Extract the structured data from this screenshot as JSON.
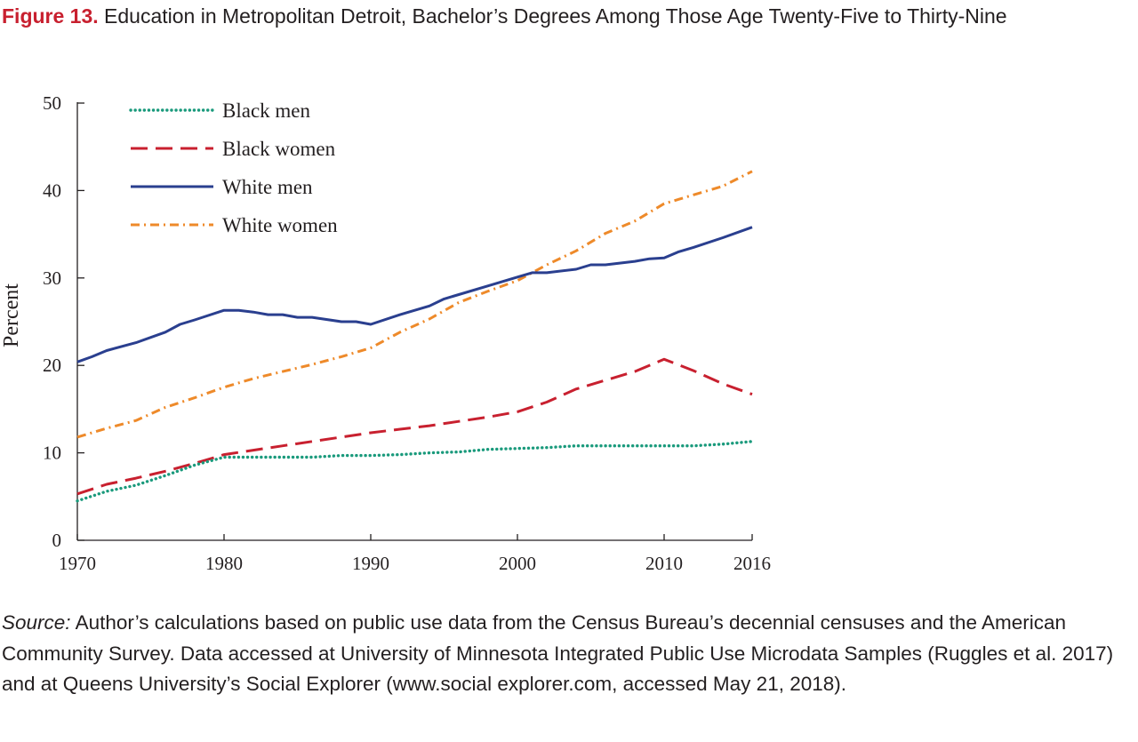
{
  "figure": {
    "label": "Figure 13.",
    "title": "Education in Metropolitan Detroit, Bachelor’s Degrees Among Those Age Twenty-Five to Thirty-Nine"
  },
  "source": {
    "label": "Source:",
    "text": "Author’s calculations based on public use data from the Census Bureau’s decennial censuses and the American Community Survey. Data accessed at University of Minnesota Integrated Public Use Microdata Samples (Ruggles et al. 2017) and at Queens University’s Social Explorer (www.social explorer.com, accessed May 21, 2018)."
  },
  "chart_data": {
    "type": "line",
    "xlabel": "",
    "ylabel": "Percent",
    "xlim": [
      1970,
      2016
    ],
    "ylim": [
      0,
      50
    ],
    "xticks": [
      1970,
      1980,
      1990,
      2000,
      2010,
      2016
    ],
    "yticks": [
      0,
      10,
      20,
      30,
      40,
      50
    ],
    "grid": false,
    "legend": "top-left",
    "series": [
      {
        "name": "Black men",
        "color": "#1a9a7c",
        "style": "dotted",
        "x": [
          1970,
          1972,
          1974,
          1976,
          1978,
          1980,
          1982,
          1984,
          1986,
          1988,
          1990,
          1992,
          1994,
          1996,
          1998,
          2000,
          2002,
          2004,
          2006,
          2008,
          2010,
          2012,
          2014,
          2016
        ],
        "y": [
          4.5,
          5.6,
          6.3,
          7.4,
          8.6,
          9.5,
          9.5,
          9.5,
          9.5,
          9.7,
          9.7,
          9.8,
          10.0,
          10.1,
          10.4,
          10.5,
          10.6,
          10.8,
          10.8,
          10.8,
          10.8,
          10.8,
          11.0,
          11.3
        ]
      },
      {
        "name": "Black women",
        "color": "#c8202f",
        "style": "dashed",
        "x": [
          1970,
          1972,
          1974,
          1976,
          1978,
          1980,
          1982,
          1984,
          1986,
          1988,
          1990,
          1992,
          1994,
          1996,
          1998,
          2000,
          2002,
          2004,
          2006,
          2008,
          2010,
          2012,
          2014,
          2016
        ],
        "y": [
          5.3,
          6.4,
          7.1,
          7.9,
          8.8,
          9.8,
          10.3,
          10.8,
          11.3,
          11.8,
          12.3,
          12.7,
          13.1,
          13.6,
          14.1,
          14.7,
          15.8,
          17.3,
          18.3,
          19.3,
          20.7,
          19.4,
          17.9,
          16.7
        ]
      },
      {
        "name": "White men",
        "color": "#2a3f8f",
        "style": "solid",
        "x": [
          1970,
          1971,
          1972,
          1974,
          1976,
          1977,
          1978,
          1980,
          1981,
          1982,
          1983,
          1984,
          1985,
          1986,
          1988,
          1989,
          1990,
          1992,
          1994,
          1995,
          1996,
          1998,
          2000,
          2001,
          2002,
          2004,
          2005,
          2006,
          2008,
          2009,
          2010,
          2011,
          2012,
          2014,
          2016
        ],
        "y": [
          20.4,
          21.0,
          21.7,
          22.6,
          23.8,
          24.7,
          25.2,
          26.3,
          26.3,
          26.1,
          25.8,
          25.8,
          25.5,
          25.5,
          25.0,
          25.0,
          24.7,
          25.8,
          26.8,
          27.6,
          28.1,
          29.1,
          30.1,
          30.6,
          30.6,
          31.0,
          31.5,
          31.5,
          31.9,
          32.2,
          32.3,
          33.0,
          33.5,
          34.6,
          35.8
        ]
      },
      {
        "name": "White women",
        "color": "#ee8a2a",
        "style": "dashdot",
        "x": [
          1970,
          1972,
          1974,
          1976,
          1978,
          1980,
          1982,
          1984,
          1986,
          1988,
          1990,
          1992,
          1994,
          1996,
          1998,
          2000,
          2002,
          2004,
          2006,
          2008,
          2010,
          2012,
          2014,
          2016
        ],
        "y": [
          11.8,
          12.8,
          13.7,
          15.2,
          16.3,
          17.5,
          18.5,
          19.3,
          20.1,
          21.0,
          22.0,
          23.8,
          25.3,
          27.2,
          28.5,
          29.7,
          31.5,
          33.1,
          35.1,
          36.5,
          38.5,
          39.5,
          40.5,
          42.2
        ]
      }
    ]
  }
}
